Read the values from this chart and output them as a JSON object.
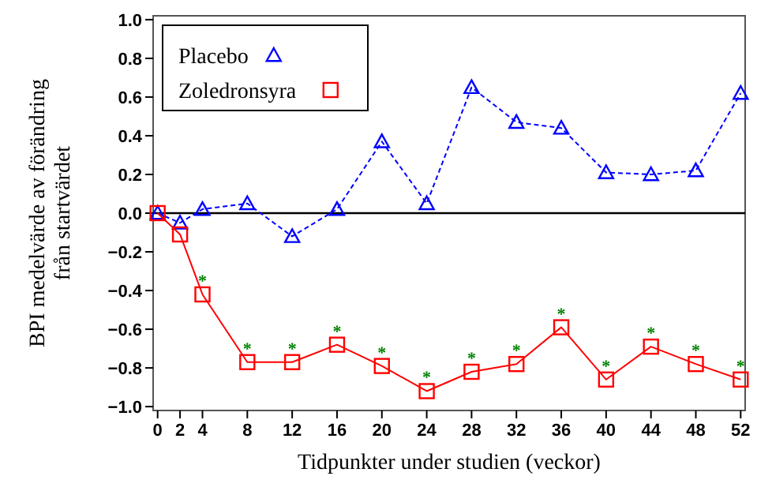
{
  "chart_data": {
    "type": "line",
    "xlabel": "Tidpunkter under studien (veckor)",
    "ylabel": "BPI medelvärde av förändring från startvärdet",
    "x": [
      0,
      2,
      4,
      8,
      12,
      16,
      20,
      24,
      28,
      32,
      36,
      40,
      44,
      48,
      52
    ],
    "series": [
      {
        "name": "Placebo",
        "color": "#0000ff",
        "marker": "triangle",
        "line_style": "dashed",
        "values": [
          0,
          -0.05,
          0.02,
          0.05,
          -0.12,
          0.02,
          0.37,
          0.05,
          0.65,
          0.47,
          0.44,
          0.21,
          0.2,
          0.22,
          0.62
        ]
      },
      {
        "name": "Zoledronsyra",
        "color": "#ff0000",
        "marker": "square",
        "line_style": "solid",
        "values": [
          0,
          -0.11,
          -0.42,
          -0.77,
          -0.77,
          -0.68,
          -0.79,
          -0.92,
          -0.82,
          -0.78,
          -0.59,
          -0.86,
          -0.69,
          -0.78,
          -0.86
        ]
      }
    ],
    "xlim": [
      -0.4,
      52.4
    ],
    "xticks": [
      0,
      2,
      4,
      8,
      12,
      16,
      20,
      24,
      28,
      32,
      36,
      40,
      44,
      48,
      52
    ],
    "ylim": [
      -1.02,
      1.02
    ],
    "yticks": [
      {
        "value": -1,
        "label": "−1.0"
      },
      {
        "value": -0.8,
        "label": "−0.8"
      },
      {
        "value": -0.6,
        "label": "−0.6"
      },
      {
        "value": -0.4,
        "label": "−0.4"
      },
      {
        "value": -0.2,
        "label": "−0.2"
      },
      {
        "value": 0,
        "label": "0.0"
      },
      {
        "value": 0.2,
        "label": "0.2"
      },
      {
        "value": 0.4,
        "label": "0.4"
      },
      {
        "value": 0.6,
        "label": "0.6"
      },
      {
        "value": 0.8,
        "label": "0.8"
      },
      {
        "value": 1,
        "label": "1.0"
      }
    ],
    "ref_lines": [
      {
        "axis": "y",
        "value": 0,
        "color": "#000000"
      }
    ],
    "annotations": [
      {
        "text": "*",
        "x": 4,
        "y": -0.42
      },
      {
        "text": "*",
        "x": 8,
        "y": -0.77
      },
      {
        "text": "*",
        "x": 12,
        "y": -0.77
      },
      {
        "text": "*",
        "x": 16,
        "y": -0.68
      },
      {
        "text": "*",
        "x": 20,
        "y": -0.79
      },
      {
        "text": "*",
        "x": 24,
        "y": -0.92
      },
      {
        "text": "*",
        "x": 28,
        "y": -0.82
      },
      {
        "text": "*",
        "x": 32,
        "y": -0.78
      },
      {
        "text": "*",
        "x": 36,
        "y": -0.59
      },
      {
        "text": "*",
        "x": 40,
        "y": -0.86
      },
      {
        "text": "*",
        "x": 44,
        "y": -0.69
      },
      {
        "text": "*",
        "x": 48,
        "y": -0.78
      },
      {
        "text": "*",
        "x": 52,
        "y": -0.86
      }
    ],
    "legend": "top left",
    "grid": false
  }
}
